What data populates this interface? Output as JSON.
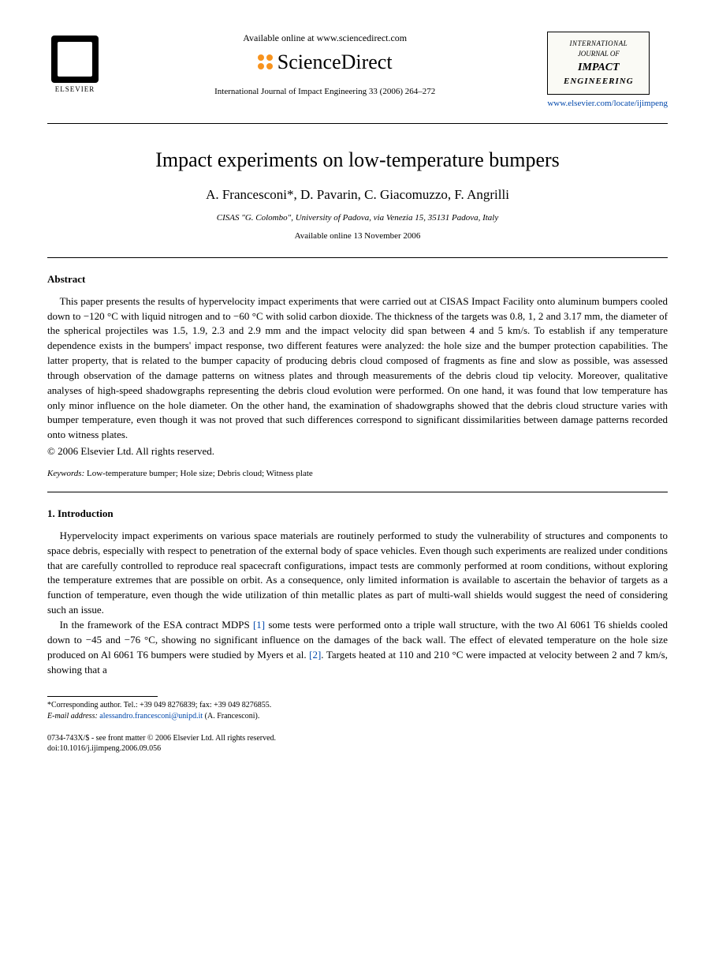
{
  "header": {
    "elsevier_label": "ELSEVIER",
    "available_online": "Available online at www.sciencedirect.com",
    "sciencedirect": "ScienceDirect",
    "citation": "International Journal of Impact Engineering 33 (2006) 264–272",
    "journal_box": {
      "line1": "INTERNATIONAL",
      "line2": "JOURNAL OF",
      "line3": "IMPACT",
      "line4": "ENGINEERING"
    },
    "journal_url": "www.elsevier.com/locate/ijimpeng"
  },
  "title": "Impact experiments on low-temperature bumpers",
  "authors": "A. Francesconi*, D. Pavarin, C. Giacomuzzo, F. Angrilli",
  "affiliation": "CISAS \"G. Colombo\", University of Padova, via Venezia 15, 35131 Padova, Italy",
  "available_date": "Available online 13 November 2006",
  "abstract": {
    "heading": "Abstract",
    "body": "This paper presents the results of hypervelocity impact experiments that were carried out at CISAS Impact Facility onto aluminum bumpers cooled down to −120 °C with liquid nitrogen and to −60 °C with solid carbon dioxide. The thickness of the targets was 0.8, 1, 2 and 3.17 mm, the diameter of the spherical projectiles was 1.5, 1.9, 2.3 and 2.9 mm and the impact velocity did span between 4 and 5 km/s. To establish if any temperature dependence exists in the bumpers' impact response, two different features were analyzed: the hole size and the bumper protection capabilities. The latter property, that is related to the bumper capacity of producing debris cloud composed of fragments as fine and slow as possible, was assessed through observation of the damage patterns on witness plates and through measurements of the debris cloud tip velocity. Moreover, qualitative analyses of high-speed shadowgraphs representing the debris cloud evolution were performed. On one hand, it was found that low temperature has only minor influence on the hole diameter. On the other hand, the examination of shadowgraphs showed that the debris cloud structure varies with bumper temperature, even though it was not proved that such differences correspond to significant dissimilarities between damage patterns recorded onto witness plates.",
    "copyright": "© 2006 Elsevier Ltd. All rights reserved."
  },
  "keywords": {
    "label": "Keywords:",
    "value": " Low-temperature bumper; Hole size; Debris cloud; Witness plate"
  },
  "introduction": {
    "heading": "1. Introduction",
    "para1": "Hypervelocity impact experiments on various space materials are routinely performed to study the vulnerability of structures and components to space debris, especially with respect to penetration of the external body of space vehicles. Even though such experiments are realized under conditions that are carefully controlled to reproduce real spacecraft configurations, impact tests are commonly performed at room conditions, without exploring the temperature extremes that are possible on orbit. As a consequence, only limited information is available to ascertain the behavior of targets as a function of temperature, even though the wide utilization of thin metallic plates as part of multi-wall shields would suggest the need of considering such an issue.",
    "para2_pre": "In the framework of the ESA contract MDPS ",
    "ref1": "[1]",
    "para2_mid": " some tests were performed onto a triple wall structure, with the two Al 6061 T6 shields cooled down to −45 and −76 °C, showing no significant influence on the damages of the back wall. The effect of elevated temperature on the hole size produced on Al 6061 T6 bumpers were studied by Myers et al. ",
    "ref2": "[2]",
    "para2_post": ". Targets heated at 110 and 210 °C were impacted at velocity between 2 and 7 km/s, showing that a"
  },
  "footnote": {
    "corresponding": "*Corresponding author. Tel.: +39 049 8276839; fax: +39 049 8276855.",
    "email_label": "E-mail address:",
    "email": " alessandro.francesconi@unipd.it ",
    "email_author": "(A. Francesconi)."
  },
  "footer": {
    "line1": "0734-743X/$ - see front matter © 2006 Elsevier Ltd. All rights reserved.",
    "line2": "doi:10.1016/j.ijimpeng.2006.09.056"
  },
  "colors": {
    "link": "#0047ab",
    "sd_orange": "#f7931e",
    "text": "#000000",
    "bg": "#ffffff"
  }
}
